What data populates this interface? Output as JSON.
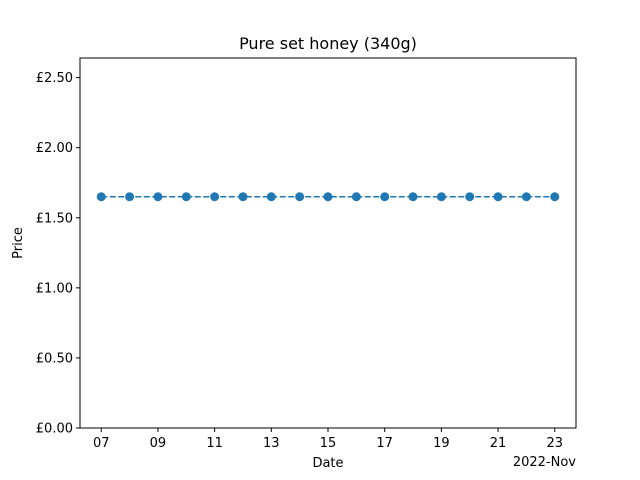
{
  "chart_data": {
    "type": "line",
    "title": "Pure set honey (340g)",
    "xlabel": "Date",
    "ylabel": "Price",
    "x_offset_label": "2022-Nov",
    "x": [
      "2022-11-07",
      "2022-11-08",
      "2022-11-09",
      "2022-11-10",
      "2022-11-11",
      "2022-11-12",
      "2022-11-13",
      "2022-11-14",
      "2022-11-15",
      "2022-11-16",
      "2022-11-17",
      "2022-11-18",
      "2022-11-19",
      "2022-11-20",
      "2022-11-21",
      "2022-11-22",
      "2022-11-23"
    ],
    "series": [
      {
        "values": [
          1.65,
          1.65,
          1.65,
          1.65,
          1.65,
          1.65,
          1.65,
          1.65,
          1.65,
          1.65,
          1.65,
          1.65,
          1.65,
          1.65,
          1.65,
          1.65,
          1.65
        ],
        "color": "#1f77b4",
        "line_style": "dashed",
        "marker": "circle"
      }
    ],
    "x_ticks": [
      "07",
      "09",
      "11",
      "13",
      "15",
      "17",
      "19",
      "21",
      "23"
    ],
    "y_ticks": [
      "£0.00",
      "£0.50",
      "£1.00",
      "£1.50",
      "£2.00",
      "£2.50"
    ],
    "ylim": [
      0,
      2.64
    ],
    "grid": false
  }
}
